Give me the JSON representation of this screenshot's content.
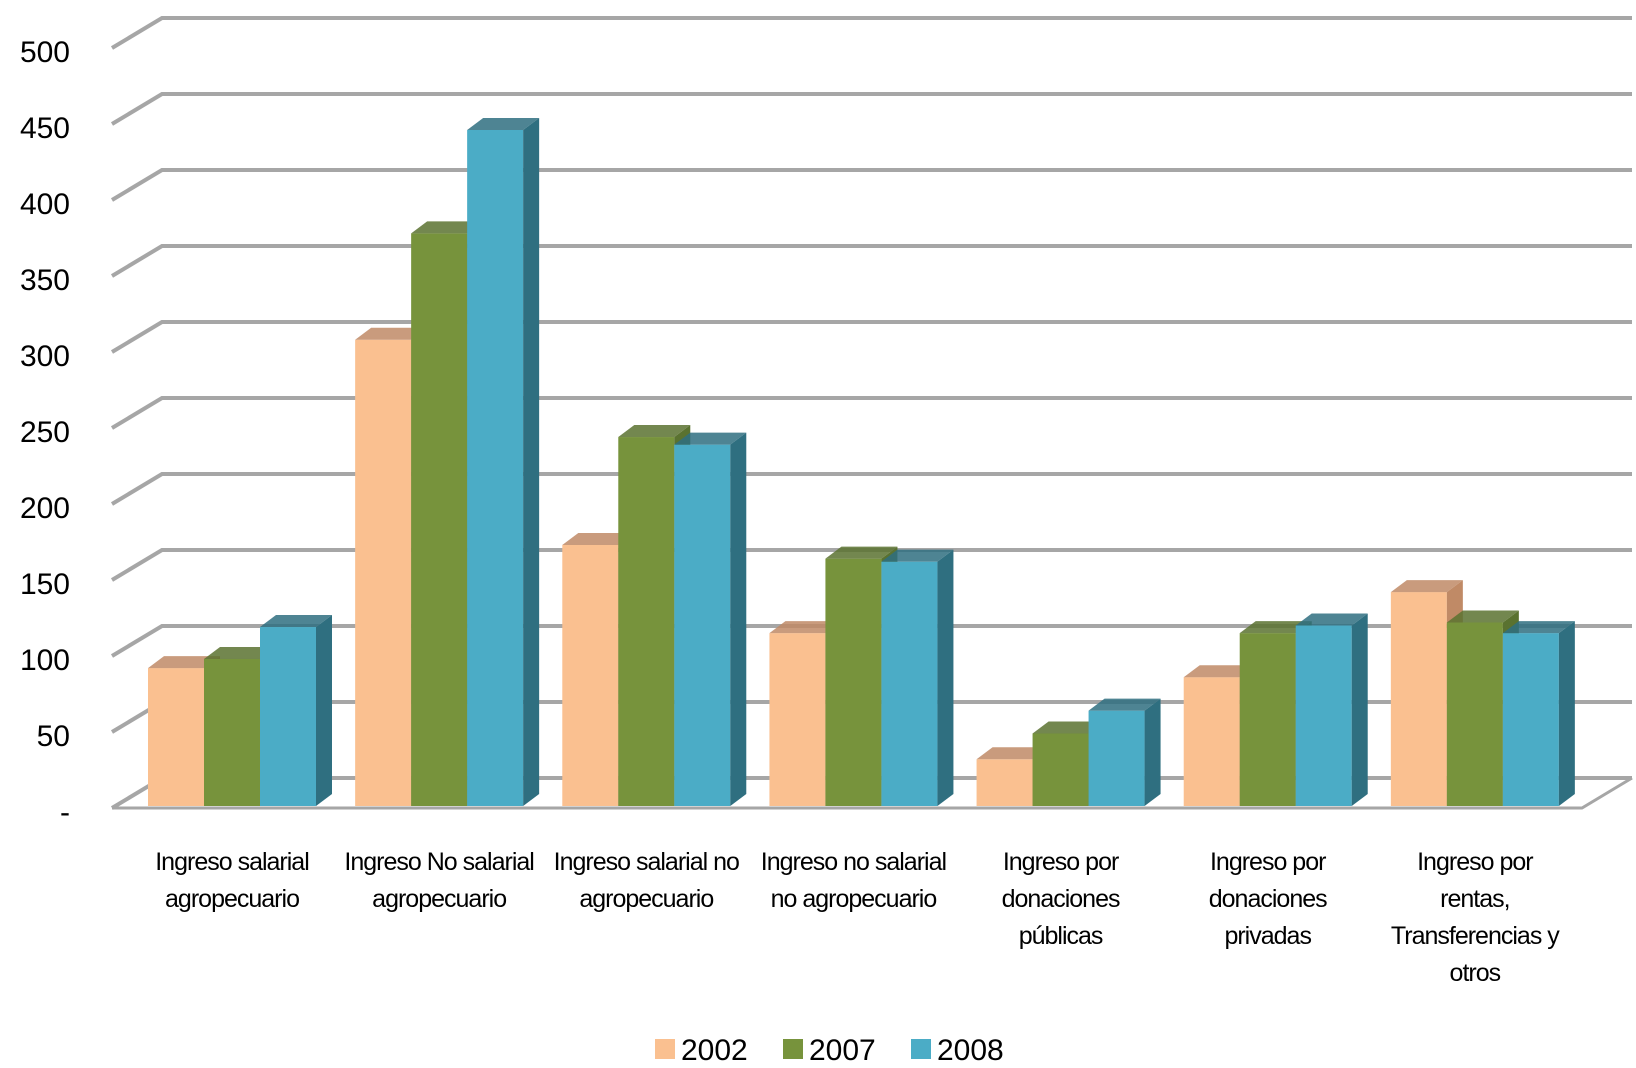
{
  "chart_data": {
    "type": "bar3d",
    "categories": [
      "Ingreso salarial agropecuario",
      "Ingreso No salarial agropecuario",
      "Ingreso salarial no agropecuario",
      "Ingreso no salarial no agropecuario",
      "Ingreso por donaciones públicas",
      "Ingreso por donaciones privadas",
      "Ingreso por rentas, Transferencias y otros"
    ],
    "series": [
      {
        "name": "2002",
        "color": "#fac090",
        "side": "#c08a66",
        "values": [
          96,
          312,
          177,
          119,
          36,
          90,
          146
        ]
      },
      {
        "name": "2007",
        "color": "#77933c",
        "side": "#5a7230",
        "values": [
          102,
          382,
          248,
          168,
          53,
          119,
          126
        ]
      },
      {
        "name": "2008",
        "color": "#4bacc6",
        "side": "#2f6f80",
        "values": [
          123,
          450,
          243,
          166,
          68,
          124,
          119
        ]
      }
    ],
    "ylim": [
      0,
      500
    ],
    "yticks": [
      {
        "value": 0,
        "label": "-"
      },
      50,
      100,
      150,
      200,
      250,
      300,
      350,
      400,
      450,
      500
    ],
    "grid": true,
    "legend": "bottom"
  }
}
